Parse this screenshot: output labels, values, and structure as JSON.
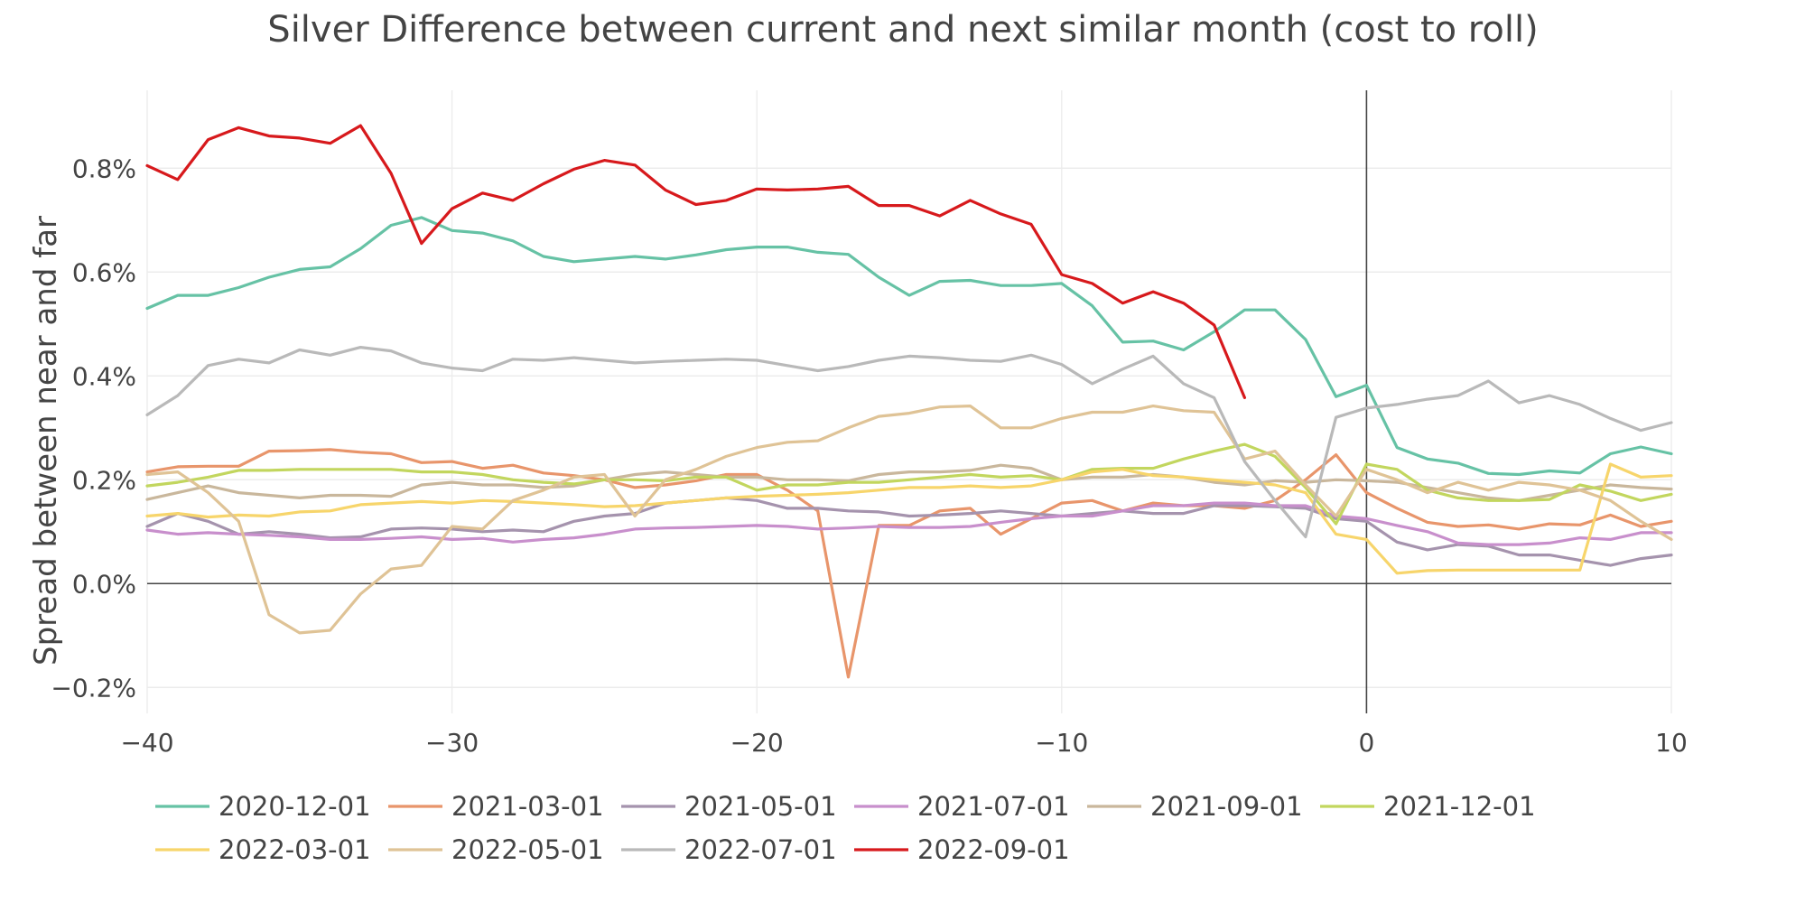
{
  "chart_data": {
    "type": "line",
    "title": "Silver Difference between current and next similar month (cost to roll)",
    "xlabel": "",
    "ylabel": "Spread between near and far",
    "xlim": [
      -40,
      10
    ],
    "ylim": [
      -0.25,
      0.95
    ],
    "x_ticks": [
      -40,
      -30,
      -20,
      -10,
      0,
      10
    ],
    "x_tick_labels": [
      "−40",
      "−30",
      "−20",
      "−10",
      "0",
      "10"
    ],
    "y_ticks": [
      -0.2,
      0,
      0.2,
      0.4,
      0.6,
      0.8
    ],
    "y_tick_labels": [
      "−0.2%",
      "0.0%",
      "0.2%",
      "0.4%",
      "0.6%",
      "0.8%"
    ],
    "y_unit": "%",
    "grid": true,
    "zero_lines": true,
    "legend_position": "bottom",
    "series": [
      {
        "name": "2020-12-01",
        "color": "#66c2a5",
        "x": [
          -40,
          -39,
          -38,
          -37,
          -36,
          -35,
          -34,
          -33,
          -32,
          -31,
          -30,
          -29,
          -28,
          -27,
          -26,
          -25,
          -24,
          -23,
          -22,
          -21,
          -20,
          -19,
          -18,
          -17,
          -16,
          -15,
          -14,
          -13,
          -12,
          -11,
          -10,
          -9,
          -8,
          -7,
          -6,
          -5,
          -4,
          -3,
          -2,
          -1,
          0,
          1,
          2,
          3,
          4,
          5,
          6,
          7,
          8,
          9,
          10
        ],
        "y": [
          0.53,
          0.555,
          0.555,
          0.57,
          0.59,
          0.605,
          0.61,
          0.645,
          0.69,
          0.705,
          0.68,
          0.675,
          0.66,
          0.63,
          0.62,
          0.625,
          0.63,
          0.625,
          0.633,
          0.643,
          0.648,
          0.648,
          0.638,
          0.634,
          0.59,
          0.555,
          0.582,
          0.584,
          0.574,
          0.574,
          0.578,
          0.535,
          0.465,
          0.467,
          0.45,
          0.485,
          0.527,
          0.527,
          0.47,
          0.36,
          0.382,
          0.262,
          0.24,
          0.232,
          0.212,
          0.21,
          0.217,
          0.213,
          0.25,
          0.263,
          0.25
        ]
      },
      {
        "name": "2021-03-01",
        "color": "#e8956b",
        "x": [
          -40,
          -39,
          -38,
          -37,
          -36,
          -35,
          -34,
          -33,
          -32,
          -31,
          -30,
          -29,
          -28,
          -27,
          -26,
          -25,
          -24,
          -23,
          -22,
          -21,
          -20,
          -19,
          -18,
          -17,
          -16,
          -15,
          -14,
          -13,
          -12,
          -11,
          -10,
          -9,
          -8,
          -7,
          -6,
          -5,
          -4,
          -3,
          -2,
          -1,
          0,
          1,
          2,
          3,
          4,
          5,
          6,
          7,
          8,
          9,
          10
        ],
        "y": [
          0.215,
          0.225,
          0.226,
          0.226,
          0.255,
          0.256,
          0.258,
          0.253,
          0.25,
          0.233,
          0.235,
          0.222,
          0.228,
          0.213,
          0.208,
          0.2,
          0.185,
          0.19,
          0.198,
          0.21,
          0.21,
          0.18,
          0.14,
          -0.18,
          0.112,
          0.112,
          0.14,
          0.145,
          0.095,
          0.125,
          0.155,
          0.16,
          0.14,
          0.155,
          0.15,
          0.15,
          0.145,
          0.16,
          0.2,
          0.248,
          0.175,
          0.145,
          0.118,
          0.11,
          0.113,
          0.105,
          0.115,
          0.113,
          0.132,
          0.11,
          0.12
        ]
      },
      {
        "name": "2021-05-01",
        "color": "#a593ad",
        "x": [
          -40,
          -39,
          -38,
          -37,
          -36,
          -35,
          -34,
          -33,
          -32,
          -31,
          -30,
          -29,
          -28,
          -27,
          -26,
          -25,
          -24,
          -23,
          -22,
          -21,
          -20,
          -19,
          -18,
          -17,
          -16,
          -15,
          -14,
          -13,
          -12,
          -11,
          -10,
          -9,
          -8,
          -7,
          -6,
          -5,
          -4,
          -3,
          -2,
          -1,
          0,
          1,
          2,
          3,
          4,
          5,
          6,
          7,
          8,
          9,
          10
        ],
        "y": [
          0.11,
          0.135,
          0.12,
          0.095,
          0.1,
          0.095,
          0.088,
          0.09,
          0.105,
          0.107,
          0.105,
          0.1,
          0.103,
          0.1,
          0.12,
          0.13,
          0.135,
          0.155,
          0.16,
          0.165,
          0.16,
          0.145,
          0.145,
          0.14,
          0.138,
          0.13,
          0.132,
          0.135,
          0.14,
          0.135,
          0.13,
          0.135,
          0.14,
          0.135,
          0.135,
          0.15,
          0.15,
          0.148,
          0.145,
          0.125,
          0.12,
          0.08,
          0.065,
          0.075,
          0.072,
          0.055,
          0.055,
          0.045,
          0.035,
          0.048,
          0.055
        ]
      },
      {
        "name": "2021-07-01",
        "color": "#c88fcc",
        "x": [
          -40,
          -39,
          -38,
          -37,
          -36,
          -35,
          -34,
          -33,
          -32,
          -31,
          -30,
          -29,
          -28,
          -27,
          -26,
          -25,
          -24,
          -23,
          -22,
          -21,
          -20,
          -19,
          -18,
          -17,
          -16,
          -15,
          -14,
          -13,
          -12,
          -11,
          -10,
          -9,
          -8,
          -7,
          -6,
          -5,
          -4,
          -3,
          -2,
          -1,
          0,
          1,
          2,
          3,
          4,
          5,
          6,
          7,
          8,
          9,
          10
        ],
        "y": [
          0.103,
          0.095,
          0.098,
          0.095,
          0.093,
          0.09,
          0.085,
          0.085,
          0.087,
          0.09,
          0.085,
          0.087,
          0.08,
          0.085,
          0.088,
          0.095,
          0.105,
          0.107,
          0.108,
          0.11,
          0.112,
          0.11,
          0.105,
          0.107,
          0.11,
          0.108,
          0.108,
          0.11,
          0.118,
          0.125,
          0.13,
          0.13,
          0.14,
          0.15,
          0.15,
          0.155,
          0.155,
          0.15,
          0.15,
          0.13,
          0.125,
          0.112,
          0.1,
          0.078,
          0.075,
          0.075,
          0.078,
          0.088,
          0.085,
          0.098,
          0.098
        ]
      },
      {
        "name": "2021-09-01",
        "color": "#c9b79c",
        "x": [
          -40,
          -39,
          -38,
          -37,
          -36,
          -35,
          -34,
          -33,
          -32,
          -31,
          -30,
          -29,
          -28,
          -27,
          -26,
          -25,
          -24,
          -23,
          -22,
          -21,
          -20,
          -19,
          -18,
          -17,
          -16,
          -15,
          -14,
          -13,
          -12,
          -11,
          -10,
          -9,
          -8,
          -7,
          -6,
          -5,
          -4,
          -3,
          -2,
          -1,
          0,
          1,
          2,
          3,
          4,
          5,
          6,
          7,
          8,
          9,
          10
        ],
        "y": [
          0.162,
          0.175,
          0.188,
          0.175,
          0.17,
          0.165,
          0.17,
          0.17,
          0.168,
          0.19,
          0.195,
          0.19,
          0.19,
          0.185,
          0.188,
          0.2,
          0.21,
          0.215,
          0.21,
          0.205,
          0.205,
          0.2,
          0.2,
          0.198,
          0.21,
          0.215,
          0.215,
          0.218,
          0.228,
          0.222,
          0.2,
          0.205,
          0.205,
          0.21,
          0.205,
          0.195,
          0.19,
          0.198,
          0.195,
          0.2,
          0.198,
          0.195,
          0.185,
          0.175,
          0.165,
          0.16,
          0.17,
          0.18,
          0.19,
          0.185,
          0.182
        ]
      },
      {
        "name": "2021-12-01",
        "color": "#c2d65e",
        "x": [
          -40,
          -39,
          -38,
          -37,
          -36,
          -35,
          -34,
          -33,
          -32,
          -31,
          -30,
          -29,
          -28,
          -27,
          -26,
          -25,
          -24,
          -23,
          -22,
          -21,
          -20,
          -19,
          -18,
          -17,
          -16,
          -15,
          -14,
          -13,
          -12,
          -11,
          -10,
          -9,
          -8,
          -7,
          -6,
          -5,
          -4,
          -3,
          -2,
          -1,
          0,
          1,
          2,
          3,
          4,
          5,
          6,
          7,
          8,
          9,
          10
        ],
        "y": [
          0.188,
          0.195,
          0.205,
          0.218,
          0.218,
          0.22,
          0.22,
          0.22,
          0.22,
          0.215,
          0.215,
          0.21,
          0.2,
          0.195,
          0.192,
          0.2,
          0.2,
          0.198,
          0.205,
          0.205,
          0.18,
          0.19,
          0.19,
          0.195,
          0.195,
          0.2,
          0.205,
          0.21,
          0.205,
          0.208,
          0.2,
          0.22,
          0.222,
          0.222,
          0.24,
          0.255,
          0.268,
          0.245,
          0.185,
          0.115,
          0.23,
          0.22,
          0.18,
          0.165,
          0.16,
          0.16,
          0.162,
          0.19,
          0.178,
          0.16,
          0.172
        ]
      },
      {
        "name": "2022-03-01",
        "color": "#f7d56b",
        "x": [
          -40,
          -39,
          -38,
          -37,
          -36,
          -35,
          -34,
          -33,
          -32,
          -31,
          -30,
          -29,
          -28,
          -27,
          -26,
          -25,
          -24,
          -23,
          -22,
          -21,
          -20,
          -19,
          -18,
          -17,
          -16,
          -15,
          -14,
          -13,
          -12,
          -11,
          -10,
          -9,
          -8,
          -7,
          -6,
          -5,
          -4,
          -3,
          -2,
          -1,
          0,
          1,
          2,
          3,
          4,
          5,
          6,
          7,
          8,
          9,
          10
        ],
        "y": [
          0.13,
          0.135,
          0.128,
          0.132,
          0.13,
          0.138,
          0.14,
          0.152,
          0.155,
          0.158,
          0.155,
          0.16,
          0.158,
          0.155,
          0.152,
          0.148,
          0.15,
          0.155,
          0.16,
          0.165,
          0.168,
          0.17,
          0.172,
          0.175,
          0.18,
          0.185,
          0.185,
          0.188,
          0.185,
          0.188,
          0.2,
          0.215,
          0.22,
          0.208,
          0.205,
          0.2,
          0.195,
          0.19,
          0.175,
          0.095,
          0.085,
          0.02,
          0.025,
          0.026,
          0.026,
          0.026,
          0.026,
          0.026,
          0.23,
          0.205,
          0.208
        ]
      },
      {
        "name": "2022-05-01",
        "color": "#dfc396",
        "x": [
          -40,
          -39,
          -38,
          -37,
          -36,
          -35,
          -34,
          -33,
          -32,
          -31,
          -30,
          -29,
          -28,
          -27,
          -26,
          -25,
          -24,
          -23,
          -22,
          -21,
          -20,
          -19,
          -18,
          -17,
          -16,
          -15,
          -14,
          -13,
          -12,
          -11,
          -10,
          -9,
          -8,
          -7,
          -6,
          -5,
          -4,
          -3,
          -2,
          -1,
          0,
          1,
          2,
          3,
          4,
          5,
          6,
          7,
          8,
          9,
          10
        ],
        "y": [
          0.21,
          0.215,
          0.175,
          0.12,
          -0.06,
          -0.095,
          -0.09,
          -0.02,
          0.028,
          0.035,
          0.11,
          0.105,
          0.16,
          0.18,
          0.205,
          0.21,
          0.13,
          0.2,
          0.22,
          0.245,
          0.262,
          0.272,
          0.275,
          0.3,
          0.322,
          0.328,
          0.34,
          0.342,
          0.3,
          0.3,
          0.318,
          0.33,
          0.33,
          0.342,
          0.333,
          0.33,
          0.24,
          0.255,
          0.19,
          0.13,
          0.22,
          0.2,
          0.175,
          0.195,
          0.18,
          0.195,
          0.19,
          0.18,
          0.16,
          0.12,
          0.085
        ]
      },
      {
        "name": "2022-07-01",
        "color": "#b9b9b9",
        "x": [
          -40,
          -39,
          -38,
          -37,
          -36,
          -35,
          -34,
          -33,
          -32,
          -31,
          -30,
          -29,
          -28,
          -27,
          -26,
          -25,
          -24,
          -23,
          -22,
          -21,
          -20,
          -19,
          -18,
          -17,
          -16,
          -15,
          -14,
          -13,
          -12,
          -11,
          -10,
          -9,
          -8,
          -7,
          -6,
          -5,
          -4,
          -3,
          -2,
          -1,
          0,
          1,
          2,
          3,
          4,
          5,
          6,
          7,
          8,
          9,
          10
        ],
        "y": [
          0.325,
          0.362,
          0.42,
          0.432,
          0.425,
          0.45,
          0.44,
          0.455,
          0.448,
          0.425,
          0.415,
          0.41,
          0.432,
          0.43,
          0.435,
          0.43,
          0.425,
          0.428,
          0.43,
          0.432,
          0.43,
          0.42,
          0.41,
          0.418,
          0.43,
          0.438,
          0.435,
          0.43,
          0.428,
          0.44,
          0.422,
          0.385,
          0.413,
          0.438,
          0.385,
          0.358,
          0.235,
          0.16,
          0.09,
          0.32,
          0.338,
          0.345,
          0.355,
          0.362,
          0.39,
          0.348,
          0.362,
          0.345,
          0.318,
          0.295,
          0.31
        ]
      },
      {
        "name": "2022-09-01",
        "color": "#d7191c",
        "x": [
          -40,
          -39,
          -38,
          -37,
          -36,
          -35,
          -34,
          -33,
          -32,
          -31,
          -30,
          -29,
          -28,
          -27,
          -26,
          -25,
          -24,
          -23,
          -22,
          -21,
          -20,
          -19,
          -18,
          -17,
          -16,
          -15,
          -14,
          -13,
          -12,
          -11,
          -10,
          -9,
          -8,
          -7,
          -6,
          -5,
          -4
        ],
        "y": [
          0.805,
          0.778,
          0.855,
          0.878,
          0.862,
          0.858,
          0.848,
          0.882,
          0.79,
          0.655,
          0.722,
          0.752,
          0.738,
          0.77,
          0.798,
          0.815,
          0.806,
          0.758,
          0.73,
          0.738,
          0.76,
          0.758,
          0.76,
          0.765,
          0.728,
          0.728,
          0.708,
          0.738,
          0.712,
          0.692,
          0.595,
          0.578,
          0.54,
          0.562,
          0.54,
          0.498,
          0.358
        ]
      }
    ]
  }
}
